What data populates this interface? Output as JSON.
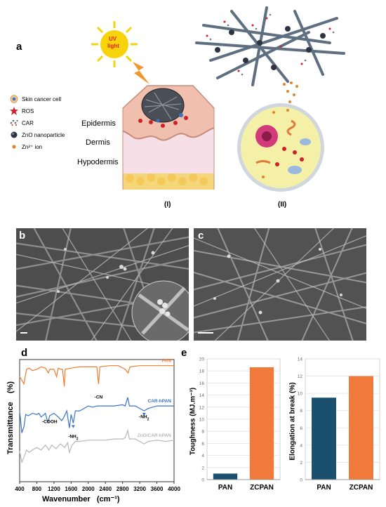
{
  "panel_a": {
    "label": "a",
    "uv_text_1": "UV",
    "uv_text_2": "light",
    "legend": [
      {
        "icon": "skin-cancer-cell-icon",
        "label": "Skin cancer cell"
      },
      {
        "icon": "ros-icon",
        "label": "ROS"
      },
      {
        "icon": "car-icon",
        "label": "CAR"
      },
      {
        "icon": "zno-nanoparticle-icon",
        "label": "ZnO nanoparticle"
      },
      {
        "icon": "zn-ion-icon",
        "label": "Zn²⁺ ion"
      }
    ],
    "layers": {
      "epidermis": "Epidermis",
      "dermis": "Dermis",
      "hypodermis": "Hypodermis"
    },
    "sub_i": "(I)",
    "sub_ii": "(II)",
    "colors": {
      "sun": "#f6d30b",
      "uv_text": "#e0261b",
      "skin_top": "#f1c3b9",
      "dermis": "#f8dbe3",
      "hypodermis": "#f5d67a",
      "cell": "#f5f0a8",
      "ros": "#d0202a"
    }
  },
  "panel_b": {
    "label": "b"
  },
  "panel_c": {
    "label": "c"
  },
  "chart_data": [
    {
      "id": "d",
      "type": "line",
      "panel_label": "d",
      "xlabel": "Wavenumber",
      "xlabel_unit": "(cm⁻¹)",
      "ylabel": "Transmittance",
      "ylabel_unit": "(%)",
      "xlim": [
        400,
        4000
      ],
      "x_ticks": [
        "400",
        "800",
        "1200",
        "1600",
        "2000",
        "2400",
        "2800",
        "3200",
        "3600",
        "4000"
      ],
      "series": [
        {
          "name": "PAN",
          "color": "#f07c2e",
          "points": [
            [
              400,
              0.86
            ],
            [
              450,
              0.83
            ],
            [
              500,
              0.8
            ],
            [
              560,
              0.92
            ],
            [
              620,
              0.93
            ],
            [
              700,
              0.91
            ],
            [
              800,
              0.92
            ],
            [
              900,
              0.94
            ],
            [
              1000,
              0.93
            ],
            [
              1070,
              0.89
            ],
            [
              1100,
              0.92
            ],
            [
              1200,
              0.92
            ],
            [
              1260,
              0.86
            ],
            [
              1300,
              0.93
            ],
            [
              1360,
              0.92
            ],
            [
              1400,
              0.92
            ],
            [
              1440,
              0.78
            ],
            [
              1460,
              0.92
            ],
            [
              1600,
              0.93
            ],
            [
              1800,
              0.94
            ],
            [
              2000,
              0.94
            ],
            [
              2200,
              0.94
            ],
            [
              2240,
              0.8
            ],
            [
              2270,
              0.94
            ],
            [
              2500,
              0.95
            ],
            [
              2700,
              0.95
            ],
            [
              2860,
              0.92
            ],
            [
              2930,
              0.89
            ],
            [
              2970,
              0.94
            ],
            [
              3200,
              0.95
            ],
            [
              3600,
              0.95
            ],
            [
              4000,
              0.95
            ]
          ]
        },
        {
          "name": "CAR-hPAN",
          "color": "#3a73c6",
          "points": [
            [
              400,
              0.58
            ],
            [
              450,
              0.4
            ],
            [
              500,
              0.45
            ],
            [
              540,
              0.55
            ],
            [
              600,
              0.54
            ],
            [
              700,
              0.56
            ],
            [
              800,
              0.55
            ],
            [
              850,
              0.56
            ],
            [
              900,
              0.53
            ],
            [
              1000,
              0.56
            ],
            [
              1060,
              0.48
            ],
            [
              1100,
              0.54
            ],
            [
              1200,
              0.56
            ],
            [
              1300,
              0.53
            ],
            [
              1380,
              0.5
            ],
            [
              1420,
              0.52
            ],
            [
              1500,
              0.58
            ],
            [
              1560,
              0.44
            ],
            [
              1600,
              0.55
            ],
            [
              1650,
              0.48
            ],
            [
              1700,
              0.58
            ],
            [
              1800,
              0.58
            ],
            [
              1900,
              0.6
            ],
            [
              2000,
              0.62
            ],
            [
              2100,
              0.61
            ],
            [
              2200,
              0.62
            ],
            [
              2400,
              0.62
            ],
            [
              2600,
              0.62
            ],
            [
              2800,
              0.63
            ],
            [
              2860,
              0.62
            ],
            [
              2920,
              0.69
            ],
            [
              2960,
              0.62
            ],
            [
              3100,
              0.62
            ],
            [
              3300,
              0.58
            ],
            [
              3400,
              0.6
            ],
            [
              3600,
              0.62
            ],
            [
              3800,
              0.62
            ],
            [
              4000,
              0.62
            ]
          ]
        },
        {
          "name": "ZnO/CAR-hPAN",
          "color": "#b8b8b8",
          "points": [
            [
              400,
              0.25
            ],
            [
              450,
              0.16
            ],
            [
              500,
              0.2
            ],
            [
              560,
              0.26
            ],
            [
              620,
              0.24
            ],
            [
              700,
              0.26
            ],
            [
              800,
              0.28
            ],
            [
              900,
              0.26
            ],
            [
              1000,
              0.3
            ],
            [
              1080,
              0.26
            ],
            [
              1150,
              0.3
            ],
            [
              1250,
              0.27
            ],
            [
              1350,
              0.31
            ],
            [
              1450,
              0.28
            ],
            [
              1520,
              0.32
            ],
            [
              1560,
              0.24
            ],
            [
              1620,
              0.3
            ],
            [
              1700,
              0.33
            ],
            [
              1800,
              0.33
            ],
            [
              2000,
              0.34
            ],
            [
              2200,
              0.34
            ],
            [
              2400,
              0.34
            ],
            [
              2600,
              0.35
            ],
            [
              2800,
              0.35
            ],
            [
              2860,
              0.36
            ],
            [
              2920,
              0.42
            ],
            [
              2960,
              0.35
            ],
            [
              3100,
              0.35
            ],
            [
              3300,
              0.31
            ],
            [
              3400,
              0.33
            ],
            [
              3600,
              0.34
            ],
            [
              3800,
              0.33
            ],
            [
              4000,
              0.34
            ]
          ]
        }
      ],
      "annotations": [
        {
          "text": "-CN",
          "x": 2240
        },
        {
          "text": "-COOH",
          "x": 1100
        },
        {
          "text": "-NH",
          "sub": "2",
          "x": 1650
        },
        {
          "text": "-NH",
          "sub": "2",
          "x": 3300
        }
      ]
    },
    {
      "id": "e1",
      "type": "bar",
      "panel_label": "e",
      "categories": [
        "PAN",
        "ZCPAN"
      ],
      "values": [
        1.0,
        18.6
      ],
      "colors": [
        "#1a4f6e",
        "#ef7a3c"
      ],
      "ylabel": "Toughness",
      "ylabel_unit": "(MJ.m⁻³)",
      "ylim": [
        0,
        20
      ],
      "y_ticks": [
        "0",
        "2",
        "4",
        "6",
        "8",
        "10",
        "12",
        "14",
        "16",
        "18",
        "20"
      ],
      "grid": true
    },
    {
      "id": "e2",
      "type": "bar",
      "categories": [
        "PAN",
        "ZCPAN"
      ],
      "values": [
        9.5,
        12.0
      ],
      "colors": [
        "#1a4f6e",
        "#ef7a3c"
      ],
      "ylabel": "Elongation at break",
      "ylabel_unit": "(%)",
      "ylim": [
        0,
        14
      ],
      "y_ticks": [
        "0",
        "2",
        "4",
        "6",
        "8",
        "10",
        "12",
        "14"
      ],
      "grid": true
    }
  ]
}
